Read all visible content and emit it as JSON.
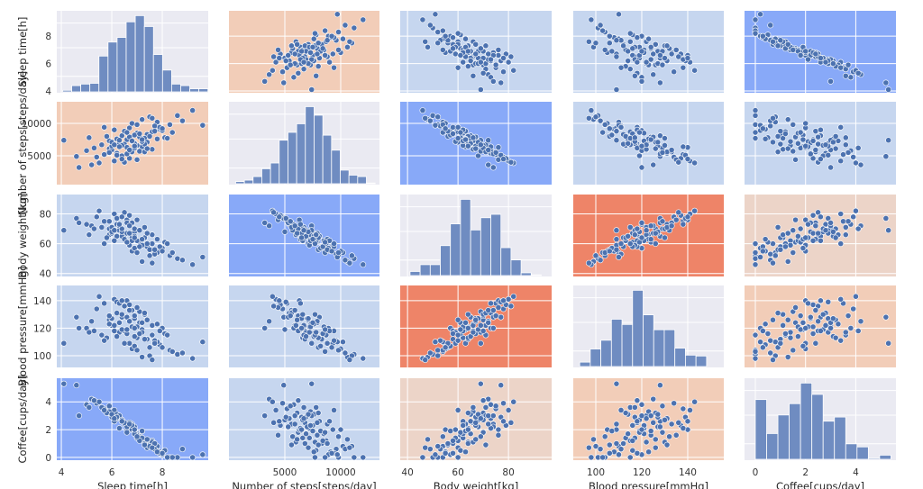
{
  "chart_data": {
    "type": "pairplot",
    "diagonal": "histogram",
    "offdiagonal": "scatter",
    "grid": true,
    "point_color": "#4c72b0",
    "bar_color": "#6f8cc1",
    "diagonal_background": "#eaeaf2",
    "variables": [
      {
        "key": "sleep",
        "label": "Sleep time[h]",
        "ticks": [
          4,
          6,
          8
        ],
        "range": [
          3.82,
          9.82
        ],
        "hist": {
          "start": 4.05,
          "width": 0.36,
          "counts": [
            2,
            8,
            10,
            11,
            46,
            64,
            70,
            90,
            98,
            84,
            48,
            28,
            10,
            8,
            4,
            4
          ]
        }
      },
      {
        "key": "steps",
        "label": "Number of steps[steps/day]",
        "ticks": [
          5000,
          10000
        ],
        "range": [
          0,
          13470
        ],
        "hist": {
          "start": 600,
          "width": 780,
          "counts": [
            3,
            5,
            10,
            21,
            29,
            61,
            72,
            84,
            108,
            96,
            68,
            47,
            19,
            12,
            10,
            1
          ]
        }
      },
      {
        "key": "weight",
        "label": "Body weight[kg]",
        "ticks": [
          40,
          60,
          80
        ],
        "range": [
          37.1,
          97.1
        ],
        "hist": {
          "start": 41,
          "width": 4,
          "counts": [
            6,
            16,
            16,
            44,
            76,
            112,
            67,
            85,
            90,
            41,
            23,
            4,
            1
          ]
        }
      },
      {
        "key": "bp",
        "label": "Blood pressure[mmHg]",
        "ticks": [
          100,
          120,
          140
        ],
        "range": [
          90.2,
          155.7
        ],
        "hist": {
          "start": 93,
          "width": 4.6,
          "counts": [
            5,
            20,
            30,
            54,
            48,
            87,
            59,
            42,
            42,
            21,
            13,
            12
          ]
        }
      },
      {
        "key": "coffee",
        "label": "Coffee[cups/day]",
        "ticks": [
          0,
          2,
          4
        ],
        "range": [
          -0.43,
          5.6
        ],
        "hist": {
          "start": 0,
          "width": 0.45,
          "counts": [
            58,
            25,
            43,
            54,
            74,
            63,
            37,
            41,
            15,
            12,
            1,
            4
          ]
        }
      }
    ],
    "y_ranges": [
      [
        3.87,
        9.85
      ],
      [
        556,
        13333
      ],
      [
        38,
        93
      ],
      [
        91.5,
        151
      ],
      [
        -0.2,
        5.7
      ]
    ],
    "panel_backgrounds": [
      [
        "#eaeaf2",
        "#f2cdb8",
        "#c6d6ef",
        "#c6d6ef",
        "#88a9f8"
      ],
      [
        "#f2cdb8",
        "#eaeaf2",
        "#88a9f8",
        "#c6d6ef",
        "#c6d6ef"
      ],
      [
        "#c6d6ef",
        "#88a9f8",
        "#eaeaf2",
        "#ee8468",
        "#ecd4c8"
      ],
      [
        "#c6d6ef",
        "#c6d6ef",
        "#ee8468",
        "#eaeaf2",
        "#f2cdb8"
      ],
      [
        "#88a9f8",
        "#c6d6ef",
        "#ecd4c8",
        "#f2cdb8",
        "#eaeaf2"
      ]
    ],
    "records_columns": [
      "sleep",
      "steps",
      "weight",
      "bp",
      "coffee"
    ],
    "records": [
      [
        6.8,
        7200,
        64,
        121,
        2.1
      ],
      [
        5.9,
        6100,
        70,
        126,
        3.2
      ],
      [
        7.4,
        8300,
        58,
        112,
        1.0
      ],
      [
        6.2,
        5400,
        73,
        131,
        2.8
      ],
      [
        7.9,
        9100,
        55,
        108,
        0.4
      ],
      [
        6.5,
        6800,
        66,
        118,
        2.5
      ],
      [
        7.1,
        7900,
        61,
        124,
        1.6
      ],
      [
        5.4,
        4800,
        78,
        134,
        3.9
      ],
      [
        8.3,
        9800,
        52,
        104,
        0.0
      ],
      [
        6.9,
        7000,
        68,
        127,
        2.2
      ],
      [
        7.6,
        8700,
        60,
        115,
        1.2
      ],
      [
        6.0,
        5900,
        71,
        122,
        3.0
      ],
      [
        7.2,
        6400,
        63,
        119,
        1.9
      ],
      [
        6.4,
        8100,
        65,
        128,
        2.6
      ],
      [
        5.7,
        5200,
        75,
        138,
        3.5
      ],
      [
        7.8,
        10200,
        54,
        110,
        0.8
      ],
      [
        6.6,
        7500,
        67,
        116,
        2.3
      ],
      [
        7.0,
        6600,
        62,
        113,
        1.4
      ],
      [
        6.1,
        4200,
        80,
        141,
        3.4
      ],
      [
        8.0,
        8900,
        57,
        120,
        0.2
      ],
      [
        6.7,
        9300,
        59,
        109,
        2.0
      ],
      [
        5.2,
        3600,
        72,
        125,
        4.2
      ],
      [
        7.3,
        7700,
        64,
        130,
        1.1
      ],
      [
        6.3,
        6900,
        69,
        117,
        2.9
      ],
      [
        8.6,
        11200,
        50,
        101,
        0.0
      ],
      [
        6.8,
        5600,
        74,
        133,
        2.4
      ],
      [
        7.5,
        8000,
        56,
        106,
        0.9
      ],
      [
        5.9,
        7300,
        66,
        123,
        3.3
      ],
      [
        6.9,
        6200,
        70,
        129,
        1.8
      ],
      [
        7.7,
        9600,
        53,
        111,
        0.6
      ],
      [
        4.6,
        4900,
        77,
        128,
        5.2
      ],
      [
        6.4,
        5000,
        68,
        119,
        2.7
      ],
      [
        7.2,
        10600,
        48,
        99,
        1.3
      ],
      [
        6.6,
        6300,
        76,
        140,
        2.0
      ],
      [
        7.0,
        8500,
        62,
        121,
        1.7
      ],
      [
        5.6,
        6700,
        71,
        115,
        3.6
      ],
      [
        9.2,
        12000,
        46,
        98,
        0.0
      ],
      [
        6.2,
        7600,
        65,
        114,
        3.1
      ],
      [
        7.4,
        7100,
        60,
        126,
        0.7
      ],
      [
        6.7,
        4600,
        79,
        137,
        2.3
      ],
      [
        5.0,
        5800,
        73,
        120,
        3.8
      ],
      [
        7.9,
        9400,
        58,
        118,
        0.3
      ],
      [
        6.5,
        8800,
        63,
        109,
        2.4
      ],
      [
        7.1,
        5700,
        69,
        132,
        1.5
      ],
      [
        6.0,
        6500,
        67,
        127,
        2.9
      ],
      [
        8.1,
        7800,
        61,
        116,
        0.5
      ],
      [
        6.8,
        10000,
        55,
        105,
        2.0
      ],
      [
        5.5,
        3900,
        82,
        143,
        4.0
      ],
      [
        7.3,
        6800,
        64,
        112,
        1.0
      ],
      [
        6.3,
        7400,
        72,
        124,
        3.0
      ],
      [
        7.6,
        6000,
        66,
        122,
        1.1
      ],
      [
        6.9,
        8200,
        57,
        107,
        1.9
      ],
      [
        4.1,
        7400,
        69,
        109,
        5.3
      ],
      [
        6.1,
        9000,
        62,
        118,
        2.6
      ],
      [
        7.0,
        4400,
        76,
        135,
        1.6
      ],
      [
        8.4,
        8600,
        54,
        103,
        0.0
      ],
      [
        6.4,
        6600,
        70,
        130,
        2.7
      ],
      [
        5.8,
        8000,
        64,
        113,
        3.2
      ],
      [
        7.2,
        7200,
        59,
        117,
        1.4
      ],
      [
        6.6,
        5300,
        74,
        128,
        2.2
      ],
      [
        9.6,
        9700,
        51,
        110,
        0.2
      ],
      [
        6.7,
        7900,
        67,
        125,
        2.5
      ],
      [
        5.3,
        6200,
        70,
        118,
        4.1
      ],
      [
        7.5,
        11000,
        52,
        100,
        0.8
      ],
      [
        6.2,
        5100,
        77,
        139,
        2.9
      ],
      [
        7.8,
        7600,
        63,
        123,
        0.4
      ],
      [
        6.9,
        6900,
        65,
        114,
        1.7
      ],
      [
        5.7,
        9400,
        60,
        111,
        3.4
      ],
      [
        7.1,
        8400,
        58,
        116,
        1.2
      ],
      [
        6.5,
        4000,
        81,
        136,
        2.5
      ],
      [
        8.8,
        10400,
        49,
        102,
        0.6
      ],
      [
        6.0,
        7100,
        68,
        127,
        3.1
      ],
      [
        7.3,
        5600,
        71,
        131,
        0.9
      ],
      [
        6.8,
        7300,
        62,
        121,
        2.3
      ],
      [
        4.7,
        3200,
        74,
        120,
        3.0
      ],
      [
        7.7,
        8800,
        56,
        109,
        1.0
      ],
      [
        6.3,
        6400,
        73,
        138,
        2.1
      ],
      [
        7.0,
        9800,
        54,
        104,
        1.5
      ],
      [
        5.9,
        5500,
        75,
        129,
        3.7
      ],
      [
        6.6,
        8600,
        61,
        119,
        1.8
      ],
      [
        7.4,
        6100,
        67,
        126,
        1.3
      ],
      [
        8.2,
        7700,
        60,
        115,
        0.0
      ],
      [
        6.1,
        6700,
        69,
        122,
        2.8
      ],
      [
        7.6,
        10800,
        47,
        97,
        0.7
      ],
      [
        6.7,
        5900,
        72,
        133,
        2.4
      ],
      [
        5.1,
        7800,
        66,
        117,
        3.6
      ],
      [
        7.2,
        7500,
        63,
        124,
        1.9
      ],
      [
        6.4,
        4500,
        78,
        140,
        2.6
      ],
      [
        8.0,
        9200,
        55,
        106,
        0.3
      ],
      [
        6.9,
        6500,
        64,
        120,
        2.0
      ]
    ]
  }
}
